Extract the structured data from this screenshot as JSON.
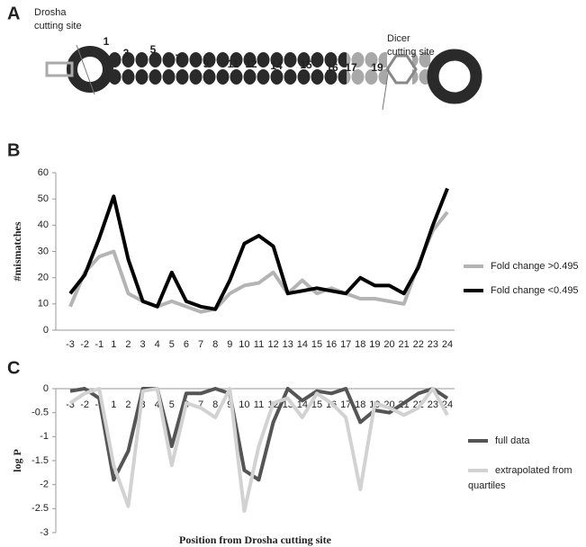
{
  "panel_labels": [
    "A",
    "B",
    "C"
  ],
  "diagram": {
    "drosha": [
      "Drosha",
      "cutting site"
    ],
    "dicer": [
      "Dicer",
      "cutting site"
    ],
    "positions": [
      "1",
      "3",
      "5",
      "7",
      "9",
      "11",
      "12",
      "14",
      "15",
      "16",
      "17",
      "19"
    ]
  },
  "chart_data": [
    {
      "type": "line",
      "y_label": "#mismatches",
      "categories": [
        "-3",
        "-2",
        "-1",
        "1",
        "2",
        "3",
        "4",
        "5",
        "6",
        "7",
        "8",
        "9",
        "10",
        "11",
        "12",
        "13",
        "14",
        "15",
        "16",
        "17",
        "18",
        "19",
        "20",
        "21",
        "22",
        "23",
        "24"
      ],
      "series": [
        {
          "name": "Fold change >0.495",
          "color": "#b4b4b4",
          "values": [
            9,
            22,
            28,
            30,
            14,
            11,
            9,
            11,
            9,
            7,
            8,
            14,
            17,
            18,
            22,
            14,
            19,
            14,
            16,
            14,
            12,
            12,
            11,
            10,
            25,
            38,
            45
          ]
        },
        {
          "name": "Fold change <0.495",
          "color": "#000000",
          "values": [
            14,
            21,
            35,
            51,
            27,
            11,
            9,
            22,
            11,
            9,
            8,
            19,
            33,
            36,
            32,
            14,
            15,
            16,
            15,
            14,
            20,
            17,
            17,
            14,
            24,
            40,
            54
          ]
        }
      ],
      "ylim": [
        0,
        60
      ],
      "yticks": [
        0,
        10,
        20,
        30,
        40,
        50,
        60
      ],
      "grid": false,
      "legend": "right"
    },
    {
      "type": "line",
      "y_label": "log P",
      "x_label": "Position from Drosha cutting site",
      "categories": [
        "-3",
        "-2",
        "-1",
        "1",
        "2",
        "3",
        "4",
        "5",
        "6",
        "7",
        "8",
        "9",
        "10",
        "11",
        "12",
        "13",
        "14",
        "15",
        "16",
        "17",
        "18",
        "19",
        "20",
        "21",
        "22",
        "23",
        "24"
      ],
      "series": [
        {
          "name": "full data",
          "color": "#555555",
          "values": [
            -0.05,
            0,
            -0.2,
            -1.9,
            -1.3,
            0,
            0,
            -1.2,
            -0.1,
            -0.1,
            0,
            -0.1,
            -1.7,
            -1.9,
            -0.7,
            0,
            -0.25,
            -0.05,
            -0.1,
            0,
            -0.7,
            -0.45,
            -0.5,
            -0.3,
            -0.1,
            0,
            -0.2
          ]
        },
        {
          "name": "extrapolated from quartiles",
          "color": "#d2d2d2",
          "values": [
            -0.3,
            -0.1,
            0,
            -1.6,
            -2.45,
            -0.05,
            0,
            -1.6,
            -0.3,
            -0.4,
            -0.6,
            0,
            -2.55,
            -1.2,
            -0.3,
            -0.2,
            -0.6,
            -0.1,
            -0.3,
            -0.6,
            -2.1,
            -0.3,
            -0.4,
            -0.55,
            -0.4,
            0,
            -0.55
          ]
        }
      ],
      "ylim": [
        -3,
        0
      ],
      "yticks": [
        0,
        -0.5,
        -1,
        -1.5,
        -2,
        -2.5,
        -3
      ],
      "grid": false,
      "legend": "right"
    }
  ]
}
